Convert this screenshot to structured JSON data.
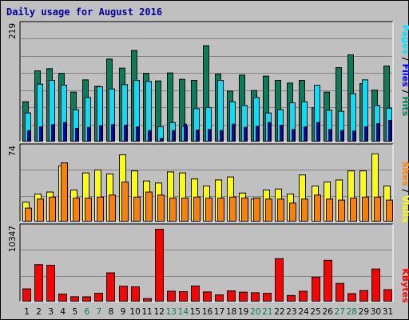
{
  "title": "Daily usage for August 2016",
  "colors": {
    "hits": "#00805c",
    "files": "#00e0ff",
    "pages": "#0000ff",
    "visits": "#ffff00",
    "sites": "#ff8000",
    "kbytes": "#ff0000",
    "weekend_label": "#00805c",
    "weekday_label": "#000000"
  },
  "legend_panel1": {
    "pages": "Pages",
    "files": "Files",
    "hits": "Hits",
    "sep": " / "
  },
  "legend_panel2": {
    "sites": "Sites",
    "visits": "Visits",
    "sep": " / "
  },
  "legend_panel3": {
    "kbytes": "KBytes"
  },
  "chart_data": {
    "type": "bar",
    "title": "Daily usage for August 2016",
    "categories": [
      "1",
      "2",
      "3",
      "4",
      "5",
      "6",
      "7",
      "8",
      "9",
      "10",
      "11",
      "12",
      "13",
      "14",
      "15",
      "16",
      "17",
      "18",
      "19",
      "20",
      "21",
      "22",
      "23",
      "24",
      "25",
      "26",
      "27",
      "28",
      "29",
      "30",
      "31"
    ],
    "weekend_days": [
      "6",
      "7",
      "13",
      "14",
      "20",
      "21",
      "27",
      "28"
    ],
    "panels": [
      {
        "ymax_label": "219",
        "ylim": [
          0,
          219
        ],
        "series": [
          {
            "name": "Hits",
            "values": [
              74,
              132,
              136,
              127,
              92,
              115,
              103,
              154,
              137,
              170,
              127,
              113,
              128,
              116,
              114,
              179,
              126,
              94,
              124,
              95,
              122,
              114,
              109,
              114,
              63,
              92,
              138,
              162,
              108,
              96,
              141
            ]
          },
          {
            "name": "Files",
            "values": [
              53,
              107,
              114,
              105,
              59,
              82,
              102,
              98,
              106,
              114,
              112,
              27,
              35,
              28,
              61,
              63,
              114,
              74,
              67,
              82,
              53,
              59,
              72,
              74,
              105,
              58,
              56,
              89,
              115,
              67,
              62
            ]
          },
          {
            "name": "Pages",
            "values": [
              20,
              27,
              31,
              35,
              24,
              26,
              29,
              31,
              30,
              27,
              20,
              5,
              20,
              32,
              21,
              22,
              20,
              32,
              26,
              28,
              35,
              30,
              22,
              27,
              35,
              22,
              20,
              19,
              27,
              33,
              39
            ]
          }
        ]
      },
      {
        "ymax_label": "74",
        "ylim": [
          0,
          74
        ],
        "series": [
          {
            "name": "Visits",
            "values": [
              19,
              27,
              29,
              55,
              31,
              48,
              51,
              47,
              66,
              50,
              40,
              38,
              49,
              48,
              42,
              35,
              41,
              44,
              28,
              22,
              31,
              32,
              27,
              46,
              35,
              39,
              41,
              50,
              50,
              67,
              35
            ]
          },
          {
            "name": "Sites",
            "values": [
              13,
              22,
              24,
              58,
              23,
              23,
              24,
              26,
              39,
              24,
              29,
              26,
              23,
              23,
              24,
              23,
              23,
              24,
              23,
              23,
              22,
              22,
              18,
              22,
              26,
              22,
              21,
              23,
              24,
              24,
              21
            ]
          }
        ]
      },
      {
        "ymax_label": "10347",
        "ylim": [
          0,
          10347
        ],
        "series": [
          {
            "name": "KBytes",
            "values": [
              1718,
              5087,
              4994,
              996,
              620,
              609,
              1099,
              3941,
              2078,
              2001,
              363,
              9996,
              1384,
              1325,
              2114,
              1291,
              876,
              1431,
              1260,
              1178,
              1098,
              5918,
              795,
              1383,
              3342,
              5692,
              2474,
              1047,
              1482,
              4480,
              1606
            ]
          }
        ]
      }
    ]
  }
}
